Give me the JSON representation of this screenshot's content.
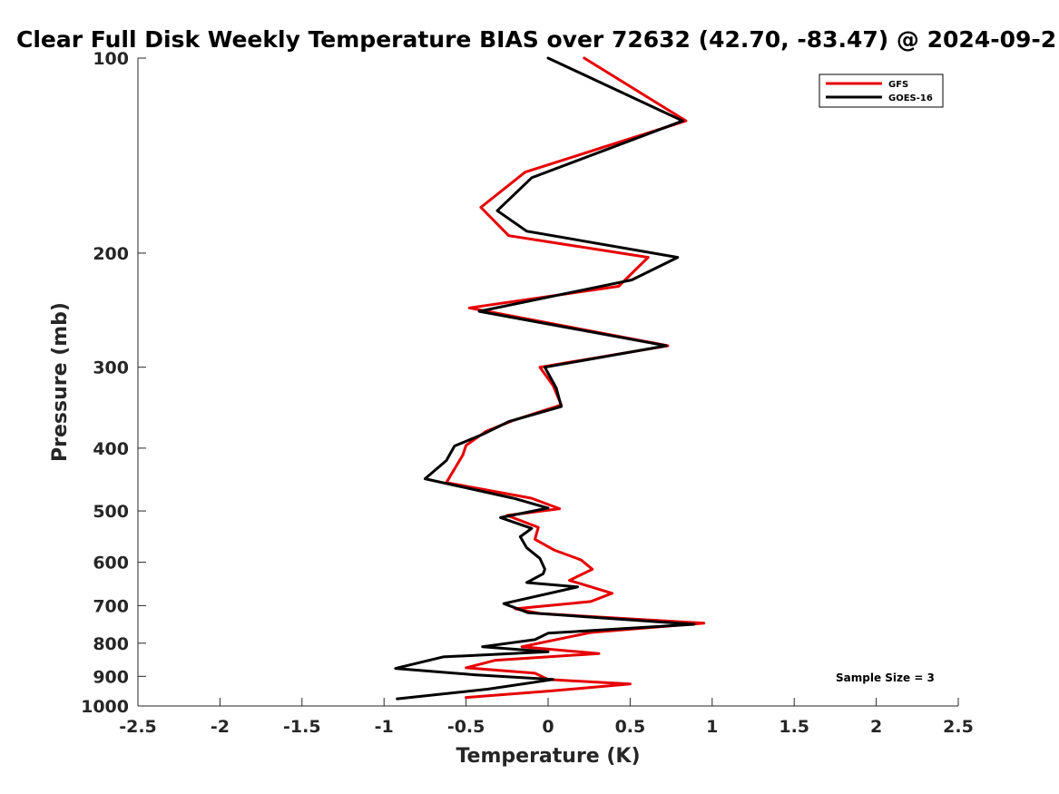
{
  "chart_data": {
    "type": "line",
    "title": "Clear Full Disk Weekly Temperature BIAS over 72632 (42.70, -83.47) @ 2024-09-2",
    "xlabel": "Temperature (K)",
    "ylabel": "Pressure (mb)",
    "xlim": [
      -2.5,
      2.5
    ],
    "ylim": [
      1000,
      100
    ],
    "yscale": "log",
    "y_reversed": true,
    "x_ticks": [
      -2.5,
      -2,
      -1.5,
      -1,
      -0.5,
      0,
      0.5,
      1,
      1.5,
      2,
      2.5
    ],
    "x_tick_labels": [
      "-2.5",
      "-2",
      "-1.5",
      "-1",
      "-0.5",
      "0",
      "0.5",
      "1",
      "1.5",
      "2",
      "2.5"
    ],
    "y_ticks": [
      100,
      200,
      300,
      400,
      500,
      600,
      700,
      800,
      900,
      1000
    ],
    "y_tick_labels": [
      "100",
      "200",
      "300",
      "400",
      "500",
      "600",
      "700",
      "800",
      "900",
      "1000"
    ],
    "grid": false,
    "legend_position": "top-right",
    "annotation": "Sample Size = 3",
    "series": [
      {
        "name": "GFS",
        "color": "#e60000",
        "points": [
          [
            0.22,
            100
          ],
          [
            0.84,
            125
          ],
          [
            -0.14,
            150
          ],
          [
            -0.41,
            170
          ],
          [
            -0.24,
            188
          ],
          [
            0.61,
            203
          ],
          [
            0.43,
            225
          ],
          [
            -0.48,
            243
          ],
          [
            0.73,
            278
          ],
          [
            -0.05,
            300
          ],
          [
            0.03,
            320
          ],
          [
            0.08,
            343
          ],
          [
            -0.22,
            363
          ],
          [
            -0.38,
            377
          ],
          [
            -0.5,
            396
          ],
          [
            -0.52,
            410
          ],
          [
            -0.62,
            452
          ],
          [
            -0.1,
            478
          ],
          [
            0.07,
            496
          ],
          [
            -0.25,
            508
          ],
          [
            -0.06,
            530
          ],
          [
            -0.08,
            553
          ],
          [
            0.04,
            575
          ],
          [
            0.2,
            595
          ],
          [
            0.27,
            615
          ],
          [
            0.13,
            640
          ],
          [
            0.39,
            670
          ],
          [
            0.26,
            690
          ],
          [
            -0.2,
            708
          ],
          [
            -0.05,
            720
          ],
          [
            0.95,
            745
          ],
          [
            0.26,
            770
          ],
          [
            -0.16,
            810
          ],
          [
            0.31,
            830
          ],
          [
            -0.32,
            850
          ],
          [
            -0.5,
            873
          ],
          [
            -0.08,
            890
          ],
          [
            0.0,
            910
          ],
          [
            0.5,
            925
          ],
          [
            0.02,
            948
          ],
          [
            -0.5,
            970
          ]
        ]
      },
      {
        "name": "GOES-16",
        "color": "#000000",
        "points": [
          [
            0.0,
            100
          ],
          [
            0.82,
            125
          ],
          [
            -0.1,
            153
          ],
          [
            -0.31,
            172
          ],
          [
            -0.13,
            185
          ],
          [
            0.79,
            203
          ],
          [
            0.51,
            220
          ],
          [
            -0.42,
            246
          ],
          [
            0.72,
            278
          ],
          [
            -0.02,
            300
          ],
          [
            0.05,
            323
          ],
          [
            0.08,
            345
          ],
          [
            -0.24,
            364
          ],
          [
            -0.4,
            381
          ],
          [
            -0.57,
            397
          ],
          [
            -0.62,
            418
          ],
          [
            -0.75,
            446
          ],
          [
            -0.21,
            478
          ],
          [
            0.0,
            495
          ],
          [
            -0.29,
            512
          ],
          [
            -0.1,
            532
          ],
          [
            -0.17,
            548
          ],
          [
            -0.13,
            570
          ],
          [
            -0.05,
            592
          ],
          [
            -0.02,
            615
          ],
          [
            -0.03,
            625
          ],
          [
            -0.13,
            645
          ],
          [
            0.18,
            655
          ],
          [
            -0.27,
            695
          ],
          [
            -0.12,
            718
          ],
          [
            0.89,
            748
          ],
          [
            0.0,
            772
          ],
          [
            -0.08,
            790
          ],
          [
            -0.4,
            810
          ],
          [
            0.0,
            825
          ],
          [
            -0.64,
            840
          ],
          [
            -0.93,
            875
          ],
          [
            -0.45,
            895
          ],
          [
            0.03,
            910
          ],
          [
            -0.37,
            942
          ],
          [
            -0.92,
            975
          ]
        ]
      }
    ]
  }
}
